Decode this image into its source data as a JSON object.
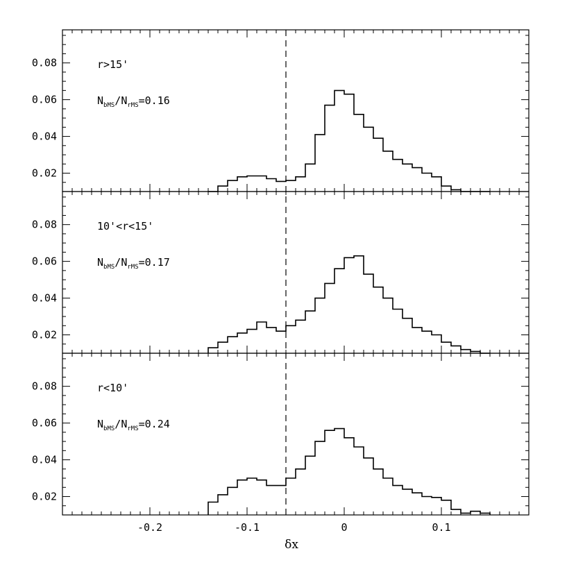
{
  "chart_data": {
    "type": "histogram",
    "xlabel": "δx",
    "xlim": [
      -0.29,
      0.19
    ],
    "ylim": [
      0.01,
      0.098
    ],
    "x_ticks": [
      -0.2,
      -0.1,
      0,
      0.1
    ],
    "x_tick_labels": [
      "-0.2",
      "-0.1",
      "0",
      "0.1"
    ],
    "y_ticks": [
      0.02,
      0.04,
      0.06,
      0.08
    ],
    "y_tick_labels": [
      "0.02",
      "0.04",
      "0.06",
      "0.08"
    ],
    "dashed_line_x": -0.06,
    "bin_edges": [
      -0.14,
      -0.13,
      -0.12,
      -0.11,
      -0.1,
      -0.09,
      -0.08,
      -0.07,
      -0.06,
      -0.05,
      -0.04,
      -0.03,
      -0.02,
      -0.01,
      0.0,
      0.01,
      0.02,
      0.03,
      0.04,
      0.05,
      0.06,
      0.07,
      0.08,
      0.09,
      0.1,
      0.11,
      0.12,
      0.13,
      0.14,
      0.15
    ],
    "panels": [
      {
        "region_label": "r>15'",
        "ratio_num_main": "N",
        "ratio_num_sub": "bMS",
        "ratio_den_main": "N",
        "ratio_den_sub": "rMS",
        "ratio_value": "=0.16",
        "values": [
          0.01,
          0.013,
          0.016,
          0.018,
          0.0185,
          0.0185,
          0.017,
          0.0155,
          0.016,
          0.018,
          0.025,
          0.041,
          0.057,
          0.065,
          0.063,
          0.052,
          0.045,
          0.039,
          0.032,
          0.0275,
          0.025,
          0.023,
          0.02,
          0.018,
          0.013,
          0.011,
          0.01,
          0.01,
          0.01
        ]
      },
      {
        "region_label": "10'<r<15'",
        "ratio_num_main": "N",
        "ratio_num_sub": "bMS",
        "ratio_den_main": "N",
        "ratio_den_sub": "rMS",
        "ratio_value": "=0.17",
        "values": [
          0.013,
          0.016,
          0.019,
          0.021,
          0.023,
          0.027,
          0.024,
          0.022,
          0.025,
          0.028,
          0.033,
          0.04,
          0.048,
          0.056,
          0.062,
          0.063,
          0.053,
          0.046,
          0.04,
          0.034,
          0.029,
          0.024,
          0.022,
          0.02,
          0.016,
          0.014,
          0.012,
          0.011,
          0.01
        ]
      },
      {
        "region_label": "r<10'",
        "ratio_num_main": "N",
        "ratio_num_sub": "bMS",
        "ratio_den_main": "N",
        "ratio_den_sub": "rMS",
        "ratio_value": "=0.24",
        "values": [
          0.017,
          0.021,
          0.025,
          0.029,
          0.03,
          0.029,
          0.026,
          0.026,
          0.03,
          0.035,
          0.042,
          0.05,
          0.056,
          0.057,
          0.052,
          0.047,
          0.041,
          0.035,
          0.03,
          0.026,
          0.024,
          0.022,
          0.02,
          0.0195,
          0.018,
          0.013,
          0.011,
          0.012,
          0.011
        ]
      }
    ]
  }
}
